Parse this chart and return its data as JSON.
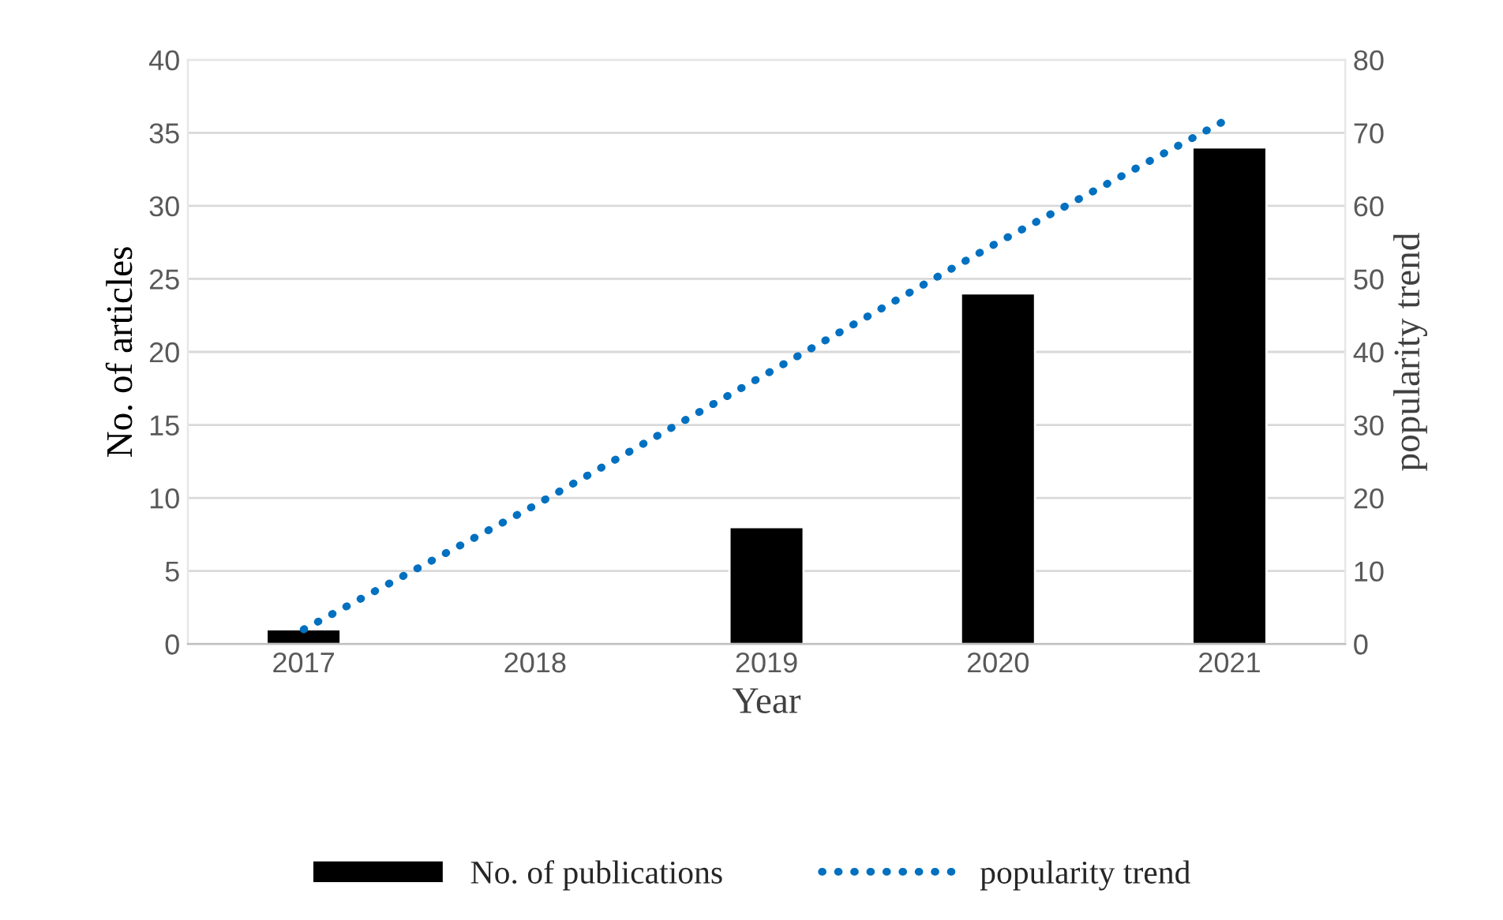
{
  "chart_data": {
    "type": "bar",
    "xlabel": "Year",
    "ylabel": "No. of articles",
    "y2label": "popularity trend",
    "categories": [
      "2017",
      "2018",
      "2019",
      "2020",
      "2021"
    ],
    "series": [
      {
        "name": "No. of publications",
        "color": "#000000",
        "values": [
          1,
          null,
          8,
          24,
          34
        ]
      },
      {
        "name": "popularity trend",
        "type": "line",
        "axis": "y2",
        "color": "#0070c0",
        "line_style": "dotted",
        "values": [
          2,
          19,
          37,
          55,
          72
        ]
      }
    ],
    "ylim": [
      0,
      40
    ],
    "yticks": [
      0,
      5,
      10,
      15,
      20,
      25,
      30,
      35,
      40
    ],
    "y2lim": [
      0,
      80
    ],
    "y2ticks": [
      0,
      10,
      20,
      30,
      40,
      50,
      60,
      70,
      80
    ],
    "grid": "y",
    "legend": "bottom"
  }
}
